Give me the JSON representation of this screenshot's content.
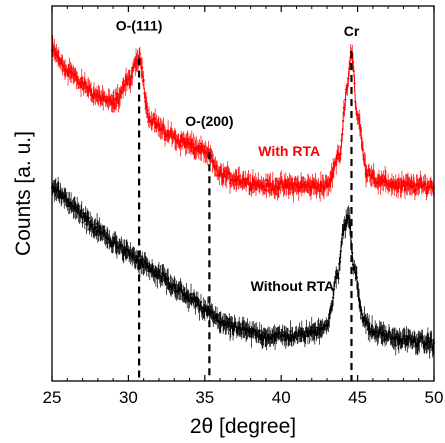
{
  "chart_data": {
    "type": "line",
    "xlabel": "2θ [degree]",
    "ylabel": "Counts [a. u.]",
    "xlim": [
      25,
      50
    ],
    "xticks": [
      "25",
      "30",
      "35",
      "40",
      "45",
      "50"
    ],
    "yticks_shown": false,
    "grid": false,
    "legend": "none (series labelled inline)",
    "series": [
      {
        "name": "With RTA",
        "color": "#ff0000",
        "marker": "small dots with error bars",
        "points": [
          [
            25.0,
            0.88
          ],
          [
            26.0,
            0.83
          ],
          [
            27.0,
            0.79
          ],
          [
            28.0,
            0.76
          ],
          [
            29.0,
            0.74
          ],
          [
            30.0,
            0.8
          ],
          [
            30.7,
            0.86
          ],
          [
            31.4,
            0.7
          ],
          [
            32.5,
            0.66
          ],
          [
            33.5,
            0.64
          ],
          [
            34.5,
            0.62
          ],
          [
            35.3,
            0.6
          ],
          [
            36.0,
            0.55
          ],
          [
            37.0,
            0.54
          ],
          [
            38.0,
            0.53
          ],
          [
            39.0,
            0.52
          ],
          [
            40.0,
            0.52
          ],
          [
            41.0,
            0.52
          ],
          [
            42.0,
            0.52
          ],
          [
            43.0,
            0.52
          ],
          [
            43.8,
            0.6
          ],
          [
            44.3,
            0.78
          ],
          [
            44.6,
            0.88
          ],
          [
            45.0,
            0.7
          ],
          [
            45.6,
            0.56
          ],
          [
            46.5,
            0.53
          ],
          [
            48.0,
            0.52
          ],
          [
            50.0,
            0.52
          ]
        ]
      },
      {
        "name": "Without RTA",
        "color": "#000000",
        "marker": "small dots with error bars",
        "points": [
          [
            25.0,
            0.52
          ],
          [
            26.0,
            0.48
          ],
          [
            27.0,
            0.44
          ],
          [
            28.0,
            0.4
          ],
          [
            29.0,
            0.37
          ],
          [
            30.0,
            0.34
          ],
          [
            31.0,
            0.31
          ],
          [
            32.0,
            0.28
          ],
          [
            33.0,
            0.25
          ],
          [
            34.0,
            0.22
          ],
          [
            35.0,
            0.19
          ],
          [
            36.0,
            0.16
          ],
          [
            37.0,
            0.14
          ],
          [
            38.0,
            0.13
          ],
          [
            39.0,
            0.12
          ],
          [
            40.0,
            0.12
          ],
          [
            41.0,
            0.12
          ],
          [
            42.0,
            0.13
          ],
          [
            43.0,
            0.15
          ],
          [
            43.7,
            0.28
          ],
          [
            44.1,
            0.41
          ],
          [
            44.4,
            0.44
          ],
          [
            44.8,
            0.3
          ],
          [
            45.3,
            0.17
          ],
          [
            46.0,
            0.13
          ],
          [
            48.0,
            0.11
          ],
          [
            50.0,
            0.1
          ]
        ]
      }
    ],
    "reference_lines": [
      {
        "x": 30.7,
        "label": "O-(111)",
        "style": "dashed",
        "color": "#000000"
      },
      {
        "x": 35.3,
        "label": "O-(200)",
        "style": "dashed",
        "color": "#000000"
      },
      {
        "x": 44.6,
        "label": "Cr",
        "style": "dashed",
        "color": "#000000"
      }
    ],
    "annotations": [
      {
        "text": "With RTA",
        "color": "#ff0000",
        "x": 38.5,
        "y": 0.6
      },
      {
        "text": "Without RTA",
        "color": "#000000",
        "x": 38.0,
        "y": 0.24
      }
    ]
  }
}
